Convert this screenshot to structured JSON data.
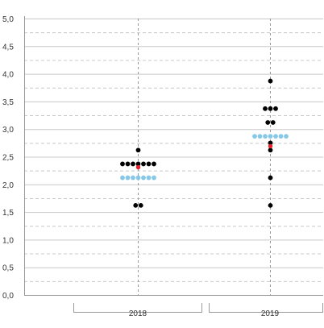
{
  "chart_data": {
    "type": "scatter",
    "categories": [
      "2018",
      "2019"
    ],
    "yticks": [
      "0,0",
      "0,5",
      "1,0",
      "1,5",
      "2,0",
      "2,5",
      "3,0",
      "3,5",
      "4,0",
      "4,5",
      "5,0"
    ],
    "ylim": [
      0,
      5
    ],
    "grid": true,
    "colors": {
      "points": "#000000",
      "mean": "#87c8e8",
      "median": "#e8202a",
      "grid": "#c8c8c8",
      "axis": "#999999"
    },
    "series": [
      {
        "category": "2018",
        "points": [
          {
            "y": 2.62,
            "n": 1
          },
          {
            "y": 2.37,
            "n": 7
          },
          {
            "y": 1.62,
            "n": 2
          }
        ],
        "mean": {
          "y": 2.12,
          "n": 7
        },
        "median": 2.31
      },
      {
        "category": "2019",
        "points": [
          {
            "y": 3.87,
            "n": 1
          },
          {
            "y": 3.37,
            "n": 3
          },
          {
            "y": 3.12,
            "n": 2
          },
          {
            "y": 2.75,
            "n": 1
          },
          {
            "y": 2.62,
            "n": 1
          },
          {
            "y": 2.12,
            "n": 1
          },
          {
            "y": 1.62,
            "n": 1
          }
        ],
        "mean": {
          "y": 2.87,
          "n": 7
        },
        "median": 2.69
      }
    ]
  }
}
